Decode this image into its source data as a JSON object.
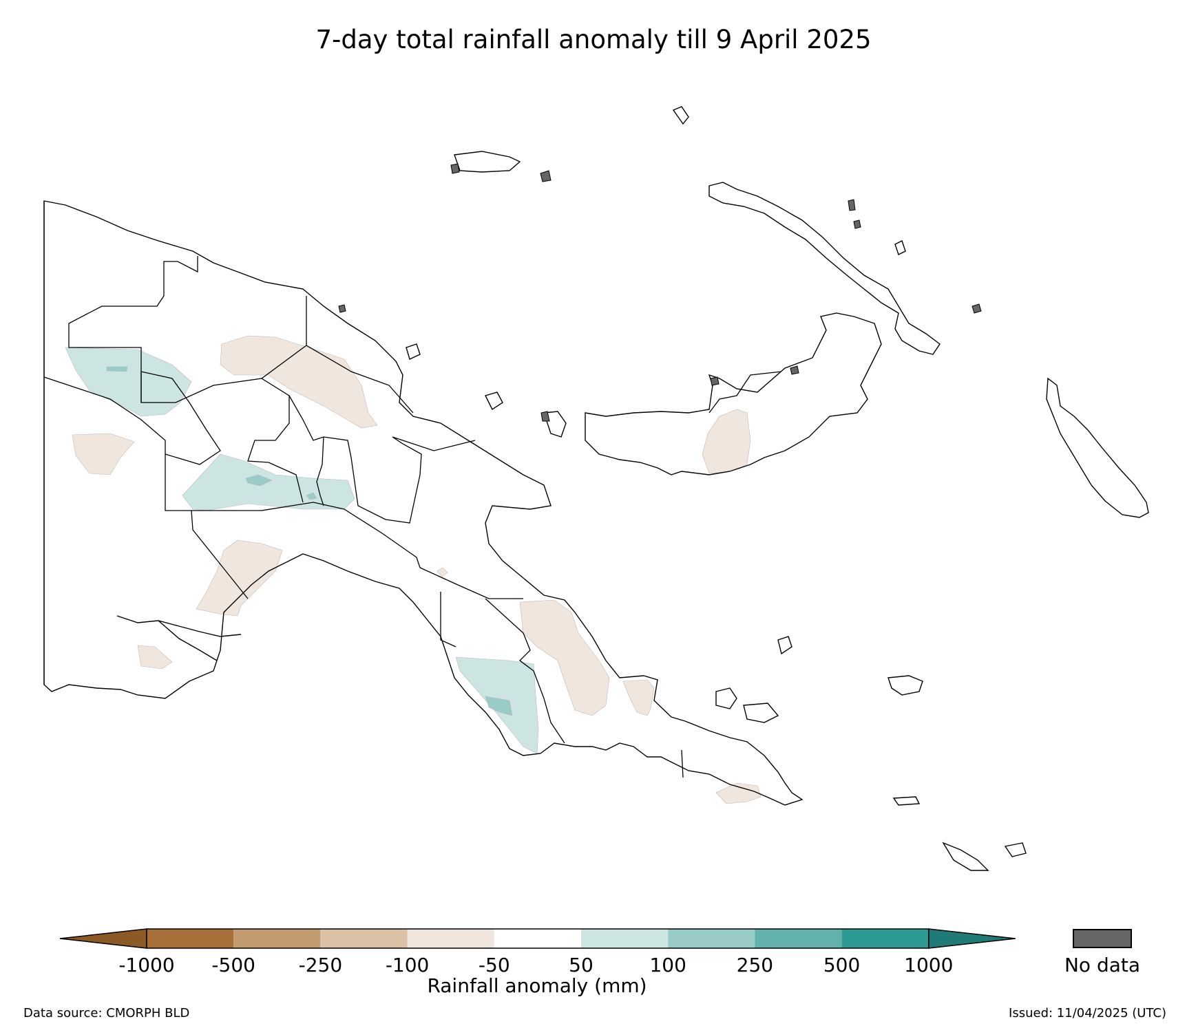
{
  "title": "7-day total rainfall anomaly till 9 April 2025",
  "legend": {
    "colorbar_title": "Rainfall anomaly (mm)",
    "tick_labels": [
      "-1000",
      "-500",
      "-250",
      "-100",
      "-50",
      "50",
      "100",
      "250",
      "500",
      "1000"
    ],
    "colors": {
      "below_min": "#8c5a25",
      "bins": [
        "#a86f39",
        "#c39b70",
        "#dbc2a6",
        "#f0e6dd",
        "#ffffff",
        "#cce5e3",
        "#99cbc9",
        "#63b1ad",
        "#2e9a94"
      ],
      "above_max": "#207a75",
      "no_data": "#666666"
    },
    "no_data_label": "No data"
  },
  "footer": {
    "source": "Data source: CMORPH BLD",
    "issued": "Issued: 11/04/2025 (UTC)"
  }
}
